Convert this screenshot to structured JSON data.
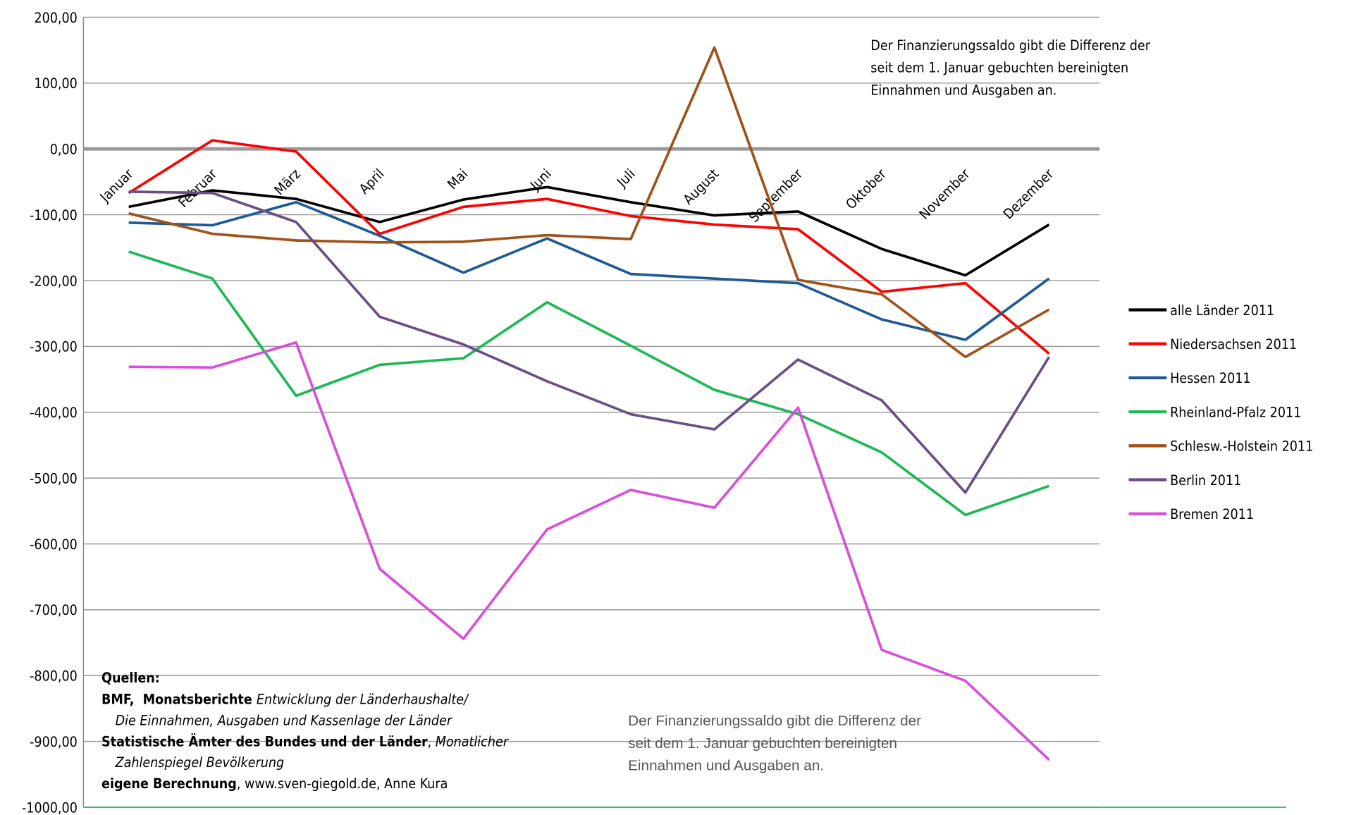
{
  "chart_data": {
    "type": "line",
    "categories": [
      "Januar",
      "Februar",
      "März",
      "April",
      "Mai",
      "Juni",
      "Juli",
      "August",
      "September",
      "Oktober",
      "November",
      "Dezember"
    ],
    "series": [
      {
        "name": "alle Länder 2011",
        "color": "#000000",
        "values": [
          -88,
          -63,
          -76,
          -111,
          -77,
          -58,
          -81,
          -101,
          -95,
          -152,
          -192,
          -115
        ]
      },
      {
        "name": "Niedersachsen 2011",
        "color": "#ff0000",
        "values": [
          -67,
          13,
          -4,
          -129,
          -88,
          -76,
          -102,
          -115,
          -122,
          -217,
          -204,
          -311
        ]
      },
      {
        "name": "Hessen 2011",
        "color": "#1f5a96",
        "values": [
          -112,
          -116,
          -81,
          -132,
          -188,
          -136,
          -190,
          -197,
          -204,
          -259,
          -290,
          -197
        ]
      },
      {
        "name": "Rheinland-Pfalz 2011",
        "color": "#1db954",
        "values": [
          -156,
          -197,
          -375,
          -328,
          -318,
          -233,
          -299,
          -366,
          -403,
          -461,
          -556,
          -512
        ]
      },
      {
        "name": "Schlesw.-Holstein 2011",
        "color": "#a0521a",
        "values": [
          -98,
          -129,
          -139,
          -142,
          -141,
          -131,
          -137,
          154,
          -199,
          -221,
          -316,
          -244
        ]
      },
      {
        "name": "Berlin 2011",
        "color": "#6a4f86",
        "values": [
          -65,
          -67,
          -111,
          -255,
          -297,
          -353,
          -403,
          -426,
          -320,
          -382,
          -522,
          -316
        ]
      },
      {
        "name": "Bremen 2011",
        "color": "#d84fd8",
        "values": [
          -331,
          -332,
          -294,
          -638,
          -744,
          -578,
          -518,
          -545,
          -393,
          -761,
          -808,
          -928
        ]
      }
    ],
    "ylim": [
      -1000,
      200
    ],
    "yticks": [
      {
        "value": 200,
        "label": "200,00"
      },
      {
        "value": 100,
        "label": "100,00"
      },
      {
        "value": 0,
        "label": "0,00"
      },
      {
        "value": -100,
        "label": "-100,00"
      },
      {
        "value": -200,
        "label": "-200,00"
      },
      {
        "value": -300,
        "label": "-300,00"
      },
      {
        "value": -400,
        "label": "-400,00"
      },
      {
        "value": -500,
        "label": "-500,00"
      },
      {
        "value": -600,
        "label": "-600,00"
      },
      {
        "value": -700,
        "label": "-700,00"
      },
      {
        "value": -800,
        "label": "-800,00"
      },
      {
        "value": -900,
        "label": "-900,00"
      },
      {
        "value": -1000,
        "label": "-1000,00"
      }
    ],
    "grid": true,
    "legend": "right",
    "annotations": [
      [
        "Der Finanzierungssaldo gibt die Differenz der",
        "seit dem 1. Januar gebuchten bereinigten",
        "Einnahmen und Ausgaben an."
      ],
      [
        "Der Finanzierungssaldo gibt die Differenz der",
        "seit dem 1. Januar gebuchten bereinigten",
        "Einnahmen und Ausgaben an."
      ]
    ],
    "sources": {
      "heading": "Quellen:",
      "lines": [
        [
          {
            "text": "BMF,  Monatsberichte ",
            "font": "bold"
          },
          {
            "text": "Entwicklung der Länderhaushalte/",
            "font": "italic"
          }
        ],
        [
          {
            "text": "Die Einnahmen, Ausgaben und Kassenlage der Länder",
            "font": "italic"
          }
        ],
        [
          {
            "text": "Statistische Ämter des Bundes und der Länder",
            "font": "bold"
          },
          {
            "text": ", ",
            "font": "normal"
          },
          {
            "text": "Monatlicher",
            "font": "italic"
          }
        ],
        [
          {
            "text": "Zahlenspiegel Bevölkerung",
            "font": "italic"
          }
        ],
        [
          {
            "text": "eigene Berechnung",
            "font": "bold"
          },
          {
            "text": ", www.sven-giegold.de, Anne Kura",
            "font": "normal"
          }
        ]
      ]
    }
  }
}
